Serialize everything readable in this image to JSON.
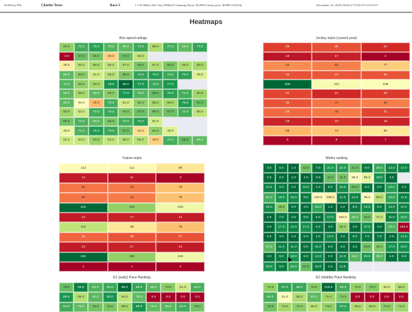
{
  "header": {
    "app_name": "PickPony PPs",
    "track": "Charles Town",
    "race": "Race 3",
    "race_info": "1 1/16 Miles Dirt Clm 5000n2l Claiming Purse: $12900 Claim price: $5000 (103.83)",
    "date_info": "December 10, 2025 (Wed) (7:57)/6:57/5:57/4:57"
  },
  "page_title": "Heatmaps",
  "colors": {
    "low": "#a50026",
    "mid": "#ffffbf",
    "high": "#006837",
    "empty": "#eaeaf2"
  },
  "chart_data": [
    {
      "type": "heatmap",
      "title": "Bris speed ratings",
      "colormap": "RdYlGn",
      "rows": [
        "JUST FOR GIGGLES",
        "SHOULDAWOODACOULDA",
        "HURRICANE JIM",
        "FABELMAN",
        "BOX OFFICE",
        "GERICAULT",
        "EMIRATES HONOR",
        "ALIGN",
        "ELECTIONEERING",
        "IL MARCHESSE",
        "ALOHA MAN"
      ],
      "ncols": 10,
      "values": [
        [
          62.0,
          72.0,
          75.0,
          70.0,
          69.0,
          73.0,
          58.0,
          72.0,
          69.0,
          74.0
        ],
        [
          -4.0,
          67.0,
          65.0,
          29.0,
          67.0,
          55.0,
          null,
          null,
          null,
          null
        ],
        [
          36.0,
          55.0,
          58.0,
          55.0,
          57.0,
          65.0,
          57.0,
          65.0,
          58.0,
          59.0
        ],
        [
          69.0,
          63.0,
          51.0,
          56.0,
          65.0,
          74.0,
          76.0,
          73.0,
          75.0,
          49.0
        ],
        [
          70.0,
          62.0,
          59.0,
          78.0,
          86.0,
          77.0,
          73.0,
          77.0,
          null,
          null
        ],
        [
          69.0,
          59.0,
          69.0,
          63.0,
          77.0,
          70.0,
          68.0,
          75.0,
          72.0,
          60.0
        ],
        [
          69.0,
          40.0,
          25.0,
          72.0,
          51.0,
          62.0,
          59.0,
          59.0,
          76.0,
          67.0
        ],
        [
          60.0,
          52.0,
          72.0,
          73.0,
          64.0,
          67.0,
          65.0,
          67.0,
          72.0,
          55.0
        ],
        [
          66.0,
          71.0,
          69.0,
          65.0,
          72.0,
          75.0,
          51.0,
          null,
          null,
          null
        ],
        [
          46.0,
          71.0,
          76.0,
          73.0,
          67.0,
          32.0,
          62.0,
          49.0,
          null,
          null
        ],
        [
          52.0,
          53.0,
          60.0,
          54.0,
          56.0,
          56.0,
          29.0,
          72.0,
          68.0,
          69.0
        ]
      ],
      "vmin": -4,
      "vmax": 86,
      "decimals": 1
    },
    {
      "type": "heatmap",
      "title": "Jockey w/p/s (current year)",
      "colormap": "RdYlGn",
      "rows": [
        "JUST FOR GIGGLES",
        "SHOULDAWOODACOULDA",
        "HURRICANE JIM",
        "FABELMAN",
        "BOX OFFICE",
        "GERICAULT",
        "EMIRATES HONOR",
        "ALIGN",
        "ELECTIONEERING",
        "IL MARCHESSE",
        "ALOHA MAN"
      ],
      "ncols": 3,
      "values": [
        [
          29,
          35,
          22
        ],
        [
          13,
          17,
          4
        ],
        [
          54,
          50,
          77
        ],
        [
          35,
          37,
          36
        ],
        [
          206,
          110,
          108
        ],
        [
          31,
          21,
          28
        ],
        [
          36,
          47,
          50
        ],
        [
          43,
          48,
          31
        ],
        [
          19,
          23,
          18
        ],
        [
          68,
          74,
          90
        ],
        [
          6,
          8,
          7
        ]
      ],
      "vmin": 4,
      "vmax": 206,
      "decimals": 0
    },
    {
      "type": "heatmap",
      "title": "Trainer w/p/s",
      "colormap": "RdYlGn",
      "rows": [
        "JUST FOR GIGGLES",
        "SHOULDAWOODACOULDA",
        "HURRICANE JIM",
        "FABELMAN",
        "BOX OFFICE",
        "GERICAULT",
        "EMIRATES HONOR",
        "ALIGN",
        "ELECTIONEERING",
        "IL MARCHESSE",
        "ALOHA MAN"
      ],
      "ncols": 3,
      "values": [
        [
          112,
          111,
          98
        ],
        [
          14,
          11,
          3
        ],
        [
          50,
          52,
          79
        ],
        [
          50,
          52,
          79
        ],
        [
          231,
          169,
          126
        ],
        [
          14,
          17,
          14
        ],
        [
          151,
          98,
          78
        ],
        [
          44,
          38,
          37
        ],
        [
          14,
          17,
          14
        ],
        [
          231,
          169,
          126
        ],
        [
          1,
          1,
          2
        ]
      ],
      "vmin": 1,
      "vmax": 231,
      "decimals": 0
    },
    {
      "type": "heatmap",
      "title": "Works ranking",
      "colormap": "RdYlGn_r",
      "rows": [
        "JUST FOR GIGGLES",
        "SHOULDAWOODACOULDA",
        "HURRICANE JIM",
        "FABELMAN",
        "BOX OFFICE",
        "GERICAULT",
        "EMIRATES HONOR",
        "ALIGN",
        "ELECTIONEERING",
        "IL MARCHESSE",
        "ALOHA MAN"
      ],
      "ncols": 12,
      "values": [
        [
          4.0,
          5.0,
          1.0,
          43.0,
          7.0,
          21.0,
          22.0,
          41.0,
          8.0,
          28.0,
          13.0,
          12.0
        ],
        [
          2.0,
          2.0,
          1.0,
          1.0,
          3.0,
          41.0,
          44.0,
          95.0,
          85.0,
          18.0,
          3.0,
          null
        ],
        [
          11.0,
          8.0,
          2.0,
          12.0,
          4.0,
          6.0,
          15.0,
          40.0,
          5.0,
          5.0,
          23.0,
          1.0
        ],
        [
          31.0,
          19.0,
          15.0,
          9.0,
          100.0,
          105.0,
          11.0,
          12.0,
          99.0,
          66.0,
          26.0,
          11.0
        ],
        [
          15.0,
          48.0,
          5.0,
          3.0,
          26.0,
          1.0,
          1.0,
          9.0,
          15.0,
          8.0,
          13.0,
          10.0
        ],
        [
          2.0,
          7.0,
          4.0,
          9.0,
          5.0,
          17.0,
          102.0,
          36.0,
          42.0,
          71.0,
          11.0,
          23.0
        ],
        [
          3.0,
          17.0,
          12.0,
          17.0,
          6.0,
          3.0,
          55.0,
          3.0,
          17.0,
          3.0,
          33.0,
          193.0
        ],
        [
          2.0,
          3.0,
          1.0,
          5.0,
          4.0,
          12.0,
          4.0,
          8.0,
          7.0,
          7.0,
          2.0,
          14.0
        ],
        [
          37.0,
          11.0,
          11.0,
          6.0,
          11.0,
          5.0,
          4.0,
          3.0,
          43.0,
          48.0,
          17.0,
          16.0
        ],
        [
          4.0,
          9.0,
          18.0,
          6.0,
          12.0,
          2.0,
          12.0,
          35.0,
          20.0,
          35.0,
          4.0,
          9.0
        ],
        [
          18.0,
          9.0,
          25.0,
          40.0,
          10.0,
          2.0,
          11.0,
          null,
          null,
          null,
          null,
          null
        ]
      ],
      "vmin": 1,
      "vmax": 193,
      "decimals": 1
    },
    {
      "type": "heatmap",
      "title": "E1 (early) Pace Ranking",
      "colormap": "RdYlGn",
      "rows": [
        "JUST FOR GIGGLES",
        "SHOULDAWOODACOULDA",
        "HURRICANE JIM"
      ],
      "ncols": 10,
      "values": [
        [
          78.0,
          93.0,
          81.0,
          84.0,
          98.0,
          85.0,
          80.0,
          73.0,
          61.0,
          82.0
        ],
        [
          88.0,
          66.0,
          80.0,
          89.0,
          64.0,
          79.0,
          0.0,
          0.0,
          0.0,
          0.0
        ],
        [
          83.0,
          79.0,
          76.0,
          75.0,
          69.0,
          89.0,
          79.0,
          80.0,
          83.0,
          76.0
        ]
      ],
      "vmin": 0,
      "vmax": 98,
      "decimals": 1
    },
    {
      "type": "heatmap",
      "title": "E2 (middle) Pace Ranking",
      "colormap": "RdYlGn",
      "rows": [
        "JUST FOR GIGGLES",
        "SHOULDAWOODACOULDA",
        "HURRICANE JIM"
      ],
      "ncols": 10,
      "values": [
        [
          73.0,
          87.0,
          86.0,
          75.0,
          100.0,
          85.0,
          73.0,
          75.0,
          60.0,
          68.0
        ],
        [
          84.0,
          51.0,
          68.0,
          81.0,
          71.0,
          75.0,
          0.0,
          0.0,
          0.0,
          0.0
        ],
        [
          78.0,
          70.0,
          74.0,
          66.0,
          73.0,
          87.0,
          68.0,
          68.0,
          74.0,
          71.0
        ]
      ],
      "vmin": 0,
      "vmax": 100,
      "decimals": 1
    }
  ]
}
